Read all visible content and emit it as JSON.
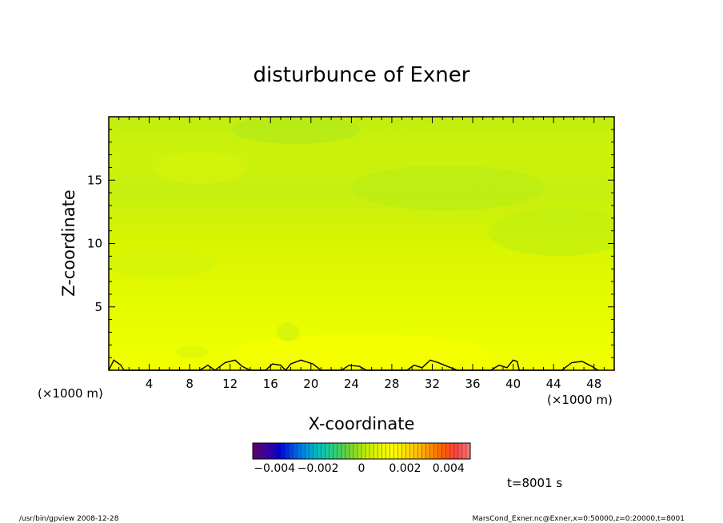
{
  "chart_data": {
    "type": "heatmap",
    "title": "disturbunce of Exner",
    "xlabel": "X-coordinate",
    "ylabel": "Z-coordinate",
    "x_unit": "(×1000 m)",
    "x_unit_right": "(×1000 m)",
    "xlim": [
      0,
      50
    ],
    "ylim": [
      0,
      20
    ],
    "x_ticks": [
      4,
      8,
      12,
      16,
      20,
      24,
      28,
      32,
      36,
      40,
      44,
      48
    ],
    "y_ticks": [
      5,
      10,
      15
    ],
    "colorbar": {
      "min": -0.005,
      "max": 0.005,
      "ticks": [
        {
          "value": -0.004,
          "label": "−0.004"
        },
        {
          "value": -0.002,
          "label": "−0.002"
        },
        {
          "value": 0,
          "label": "0"
        },
        {
          "value": 0.002,
          "label": "0.002"
        },
        {
          "value": 0.004,
          "label": "0.004"
        }
      ],
      "colors": [
        "#5a007a",
        "#3a00a8",
        "#0000d0",
        "#0050e0",
        "#0090e0",
        "#00c0c0",
        "#20d090",
        "#50d050",
        "#90e020",
        "#c8f000",
        "#e8f800",
        "#ffff00",
        "#ffe000",
        "#ffc000",
        "#ff9000",
        "#ff6000",
        "#ff4040",
        "#ff7070"
      ]
    },
    "bands": [
      {
        "z": 0.0,
        "value": 0.0003
      },
      {
        "z": 2.0,
        "value": 0.0001
      },
      {
        "z": 5.0,
        "value": 0.0
      },
      {
        "z": 8.0,
        "value": -0.0002
      },
      {
        "z": 11.0,
        "value": -0.0004
      },
      {
        "z": 14.0,
        "value": -0.0006
      },
      {
        "z": 17.0,
        "value": -0.0005
      },
      {
        "z": 19.0,
        "value": -0.0007
      },
      {
        "z": 20.0,
        "value": -0.0006
      }
    ],
    "zero_contour": [
      [
        0,
        0.0
      ],
      [
        0.5,
        0.8
      ],
      [
        1.2,
        0.4
      ],
      [
        1.5,
        0.0
      ],
      [
        9.0,
        0.0
      ],
      [
        9.8,
        0.4
      ],
      [
        10.5,
        0.0
      ],
      [
        11.5,
        0.6
      ],
      [
        12.5,
        0.8
      ],
      [
        13.2,
        0.3
      ],
      [
        14.0,
        0.0
      ],
      [
        15.5,
        0.0
      ],
      [
        16.2,
        0.5
      ],
      [
        17.0,
        0.4
      ],
      [
        17.5,
        0.0
      ],
      [
        18.0,
        0.5
      ],
      [
        19.0,
        0.8
      ],
      [
        20.2,
        0.5
      ],
      [
        21.0,
        0.0
      ],
      [
        23.0,
        0.0
      ],
      [
        23.8,
        0.4
      ],
      [
        24.8,
        0.3
      ],
      [
        25.5,
        0.0
      ],
      [
        29.5,
        0.0
      ],
      [
        30.2,
        0.4
      ],
      [
        31.0,
        0.2
      ],
      [
        31.8,
        0.8
      ],
      [
        32.6,
        0.6
      ],
      [
        33.5,
        0.3
      ],
      [
        34.5,
        0.0
      ],
      [
        37.8,
        0.0
      ],
      [
        38.6,
        0.4
      ],
      [
        39.4,
        0.2
      ],
      [
        40.0,
        0.8
      ],
      [
        40.4,
        0.7
      ],
      [
        40.6,
        0.0
      ],
      [
        44.8,
        0.0
      ],
      [
        45.8,
        0.6
      ],
      [
        46.8,
        0.7
      ],
      [
        47.8,
        0.3
      ],
      [
        48.4,
        0.0
      ]
    ]
  },
  "annotations": {
    "time": "t=8001 s",
    "footer_left": "/usr/bin/gpview   2008-12-28",
    "footer_right": "MarsCond_Exner.nc@Exner,x=0:50000,z=0:20000,t=8001"
  }
}
